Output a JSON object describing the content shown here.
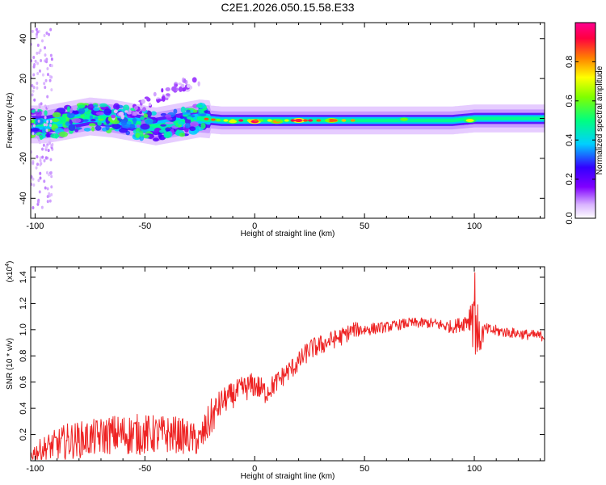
{
  "figure_title": "C2E1.2026.050.15.58.E33",
  "chart_data": [
    {
      "type": "heatmap",
      "xlabel": "Height of straight line (km)",
      "ylabel": "Frequency (Hz)",
      "xlim": [
        -102,
        132
      ],
      "ylim": [
        -50,
        48
      ],
      "xticks": [
        -100,
        -50,
        0,
        50,
        100
      ],
      "yticks": [
        -40,
        -20,
        0,
        20,
        40
      ],
      "colorbar": {
        "label": "Normalized spectral amplitude",
        "range": [
          0,
          1
        ],
        "ticks": [
          0.0,
          0.2,
          0.4,
          0.6,
          0.8
        ],
        "colors": [
          "#ffffff",
          "#d9b3ff",
          "#8000ff",
          "#3300ff",
          "#00d0ff",
          "#00ff80",
          "#80ff00",
          "#ffff00",
          "#ff8000",
          "#ff0040",
          "#ff0090"
        ]
      },
      "ridge": {
        "x": [
          -102,
          -95,
          -85,
          -75,
          -65,
          -55,
          -45,
          -35,
          -25,
          -15,
          0,
          15,
          30,
          50,
          70,
          90,
          100,
          115,
          132
        ],
        "frequency": [
          -3,
          -3,
          -1,
          1,
          0,
          -2,
          -4,
          -2,
          0,
          -1,
          -1,
          -1,
          -1,
          -1,
          -1,
          -1,
          0,
          0,
          0
        ]
      },
      "hotspots": [
        {
          "x": 0,
          "frequency": -1.5,
          "amplitude": 0.95
        },
        {
          "x": 20,
          "frequency": -1,
          "amplitude": 0.95
        },
        {
          "x": 35,
          "frequency": -1,
          "amplitude": 0.85
        },
        {
          "x": 10,
          "frequency": -1.5,
          "amplitude": 0.8
        },
        {
          "x": -10,
          "frequency": -1.5,
          "amplitude": 0.7
        },
        {
          "x": 68,
          "frequency": -0.5,
          "amplitude": 0.6
        },
        {
          "x": 98,
          "frequency": -1,
          "amplitude": 0.7
        }
      ]
    },
    {
      "type": "line",
      "xlabel": "Height of straight line (km)",
      "ylabel": "SNR (10 * v/v)",
      "multiplier": "(x10",
      "multiplier_exp": "4",
      "multiplier_close": ")",
      "xlim": [
        -102,
        132
      ],
      "ylim": [
        0,
        1.48
      ],
      "xticks": [
        -100,
        -50,
        0,
        50,
        100
      ],
      "yticks": [
        0.2,
        0.4,
        0.6,
        0.8,
        1.0,
        1.2,
        1.4
      ],
      "color": "#ee2222",
      "series": [
        {
          "x": [
            -102,
            -95,
            -85,
            -75,
            -65,
            -55,
            -45,
            -35,
            -25,
            -20,
            -15,
            -10,
            -5,
            0,
            5,
            10,
            15,
            20,
            25,
            30,
            35,
            40,
            45,
            50,
            60,
            70,
            80,
            90,
            95,
            98,
            100,
            102,
            105,
            115,
            125,
            132
          ],
          "y": [
            0.05,
            0.1,
            0.15,
            0.17,
            0.2,
            0.2,
            0.2,
            0.2,
            0.15,
            0.32,
            0.45,
            0.5,
            0.55,
            0.58,
            0.52,
            0.6,
            0.68,
            0.75,
            0.85,
            0.88,
            0.92,
            0.95,
            1.0,
            1.0,
            1.02,
            1.05,
            1.05,
            1.02,
            1.05,
            1.1,
            1.2,
            0.92,
            1.0,
            0.98,
            0.96,
            0.95
          ],
          "noise": [
            0.06,
            0.1,
            0.14,
            0.14,
            0.15,
            0.16,
            0.15,
            0.14,
            0.12,
            0.15,
            0.1,
            0.1,
            0.1,
            0.1,
            0.09,
            0.08,
            0.08,
            0.08,
            0.08,
            0.08,
            0.07,
            0.07,
            0.06,
            0.05,
            0.04,
            0.04,
            0.04,
            0.05,
            0.06,
            0.12,
            0.4,
            0.15,
            0.05,
            0.04,
            0.04,
            0.04
          ]
        }
      ]
    }
  ]
}
